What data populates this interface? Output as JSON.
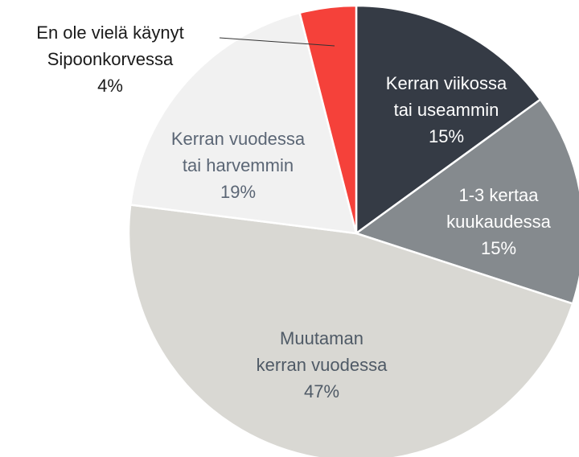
{
  "chart_data": {
    "type": "pie",
    "categories": [
      [
        "Kerran viikossa",
        "tai useammin"
      ],
      [
        "1-3 kertaa",
        "kuukaudessa"
      ],
      [
        "Muutaman",
        "kerran vuodessa"
      ],
      [
        "Kerran vuodessa",
        "tai harvemmin"
      ],
      [
        "En ole vielä käynyt",
        "Sipoonkorvessa"
      ]
    ],
    "values": [
      15,
      15,
      47,
      19,
      4
    ],
    "value_labels": [
      "15%",
      "15%",
      "47%",
      "19%",
      "4%"
    ],
    "colors": [
      "#353b45",
      "#858a8e",
      "#d9d8d3",
      "#f1f1f1",
      "#f5413a"
    ]
  }
}
